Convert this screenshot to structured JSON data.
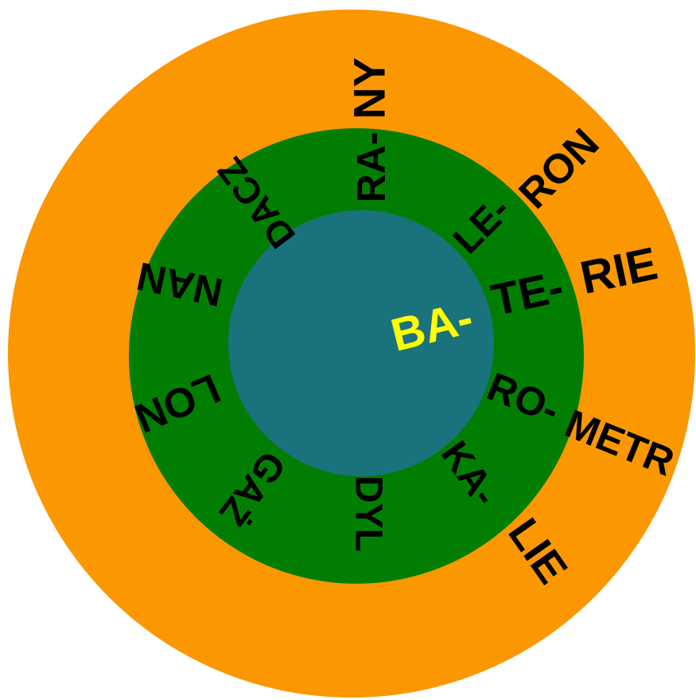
{
  "colors": {
    "outer_ring": "#fb9701",
    "middle_ring": "#017e02",
    "inner_circle": "#1a727d",
    "center_text": "#ffff00",
    "ring_text": "#000000"
  },
  "center": {
    "label": "BA-"
  },
  "middle_ring": {
    "segments": [
      {
        "label": "RA-"
      },
      {
        "label": "LE-"
      },
      {
        "label": "TE-"
      },
      {
        "label": "RO-"
      },
      {
        "label": "KA-"
      },
      {
        "label": "DYL"
      },
      {
        "label": "GAŻ"
      },
      {
        "label": "LON"
      },
      {
        "label": "NAN"
      },
      {
        "label": "DACZ"
      }
    ]
  },
  "outer_ring": {
    "segments": [
      {
        "label": "NY"
      },
      {
        "label": "RON"
      },
      {
        "label": "RIE"
      },
      {
        "label": "METR"
      },
      {
        "label": "LIE"
      }
    ]
  }
}
